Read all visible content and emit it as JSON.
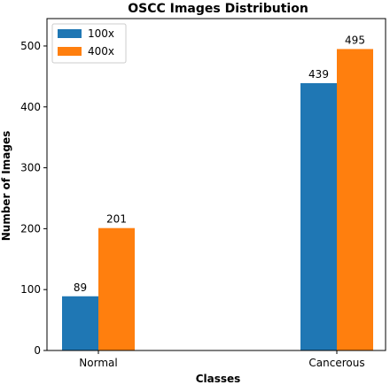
{
  "chart_data": {
    "type": "bar",
    "title": "OSCC Images Distribution",
    "xlabel": "Classes",
    "ylabel": "Number of Images",
    "categories": [
      "Normal",
      "Cancerous"
    ],
    "series": [
      {
        "name": "100x",
        "values": [
          89,
          439
        ],
        "color": "#1f77b4"
      },
      {
        "name": "400x",
        "values": [
          201,
          495
        ],
        "color": "#ff7f0e"
      }
    ],
    "ylim": [
      0,
      545
    ],
    "yticks": [
      0,
      100,
      200,
      300,
      400,
      500
    ],
    "grid": false,
    "legend_position": "top-left"
  }
}
